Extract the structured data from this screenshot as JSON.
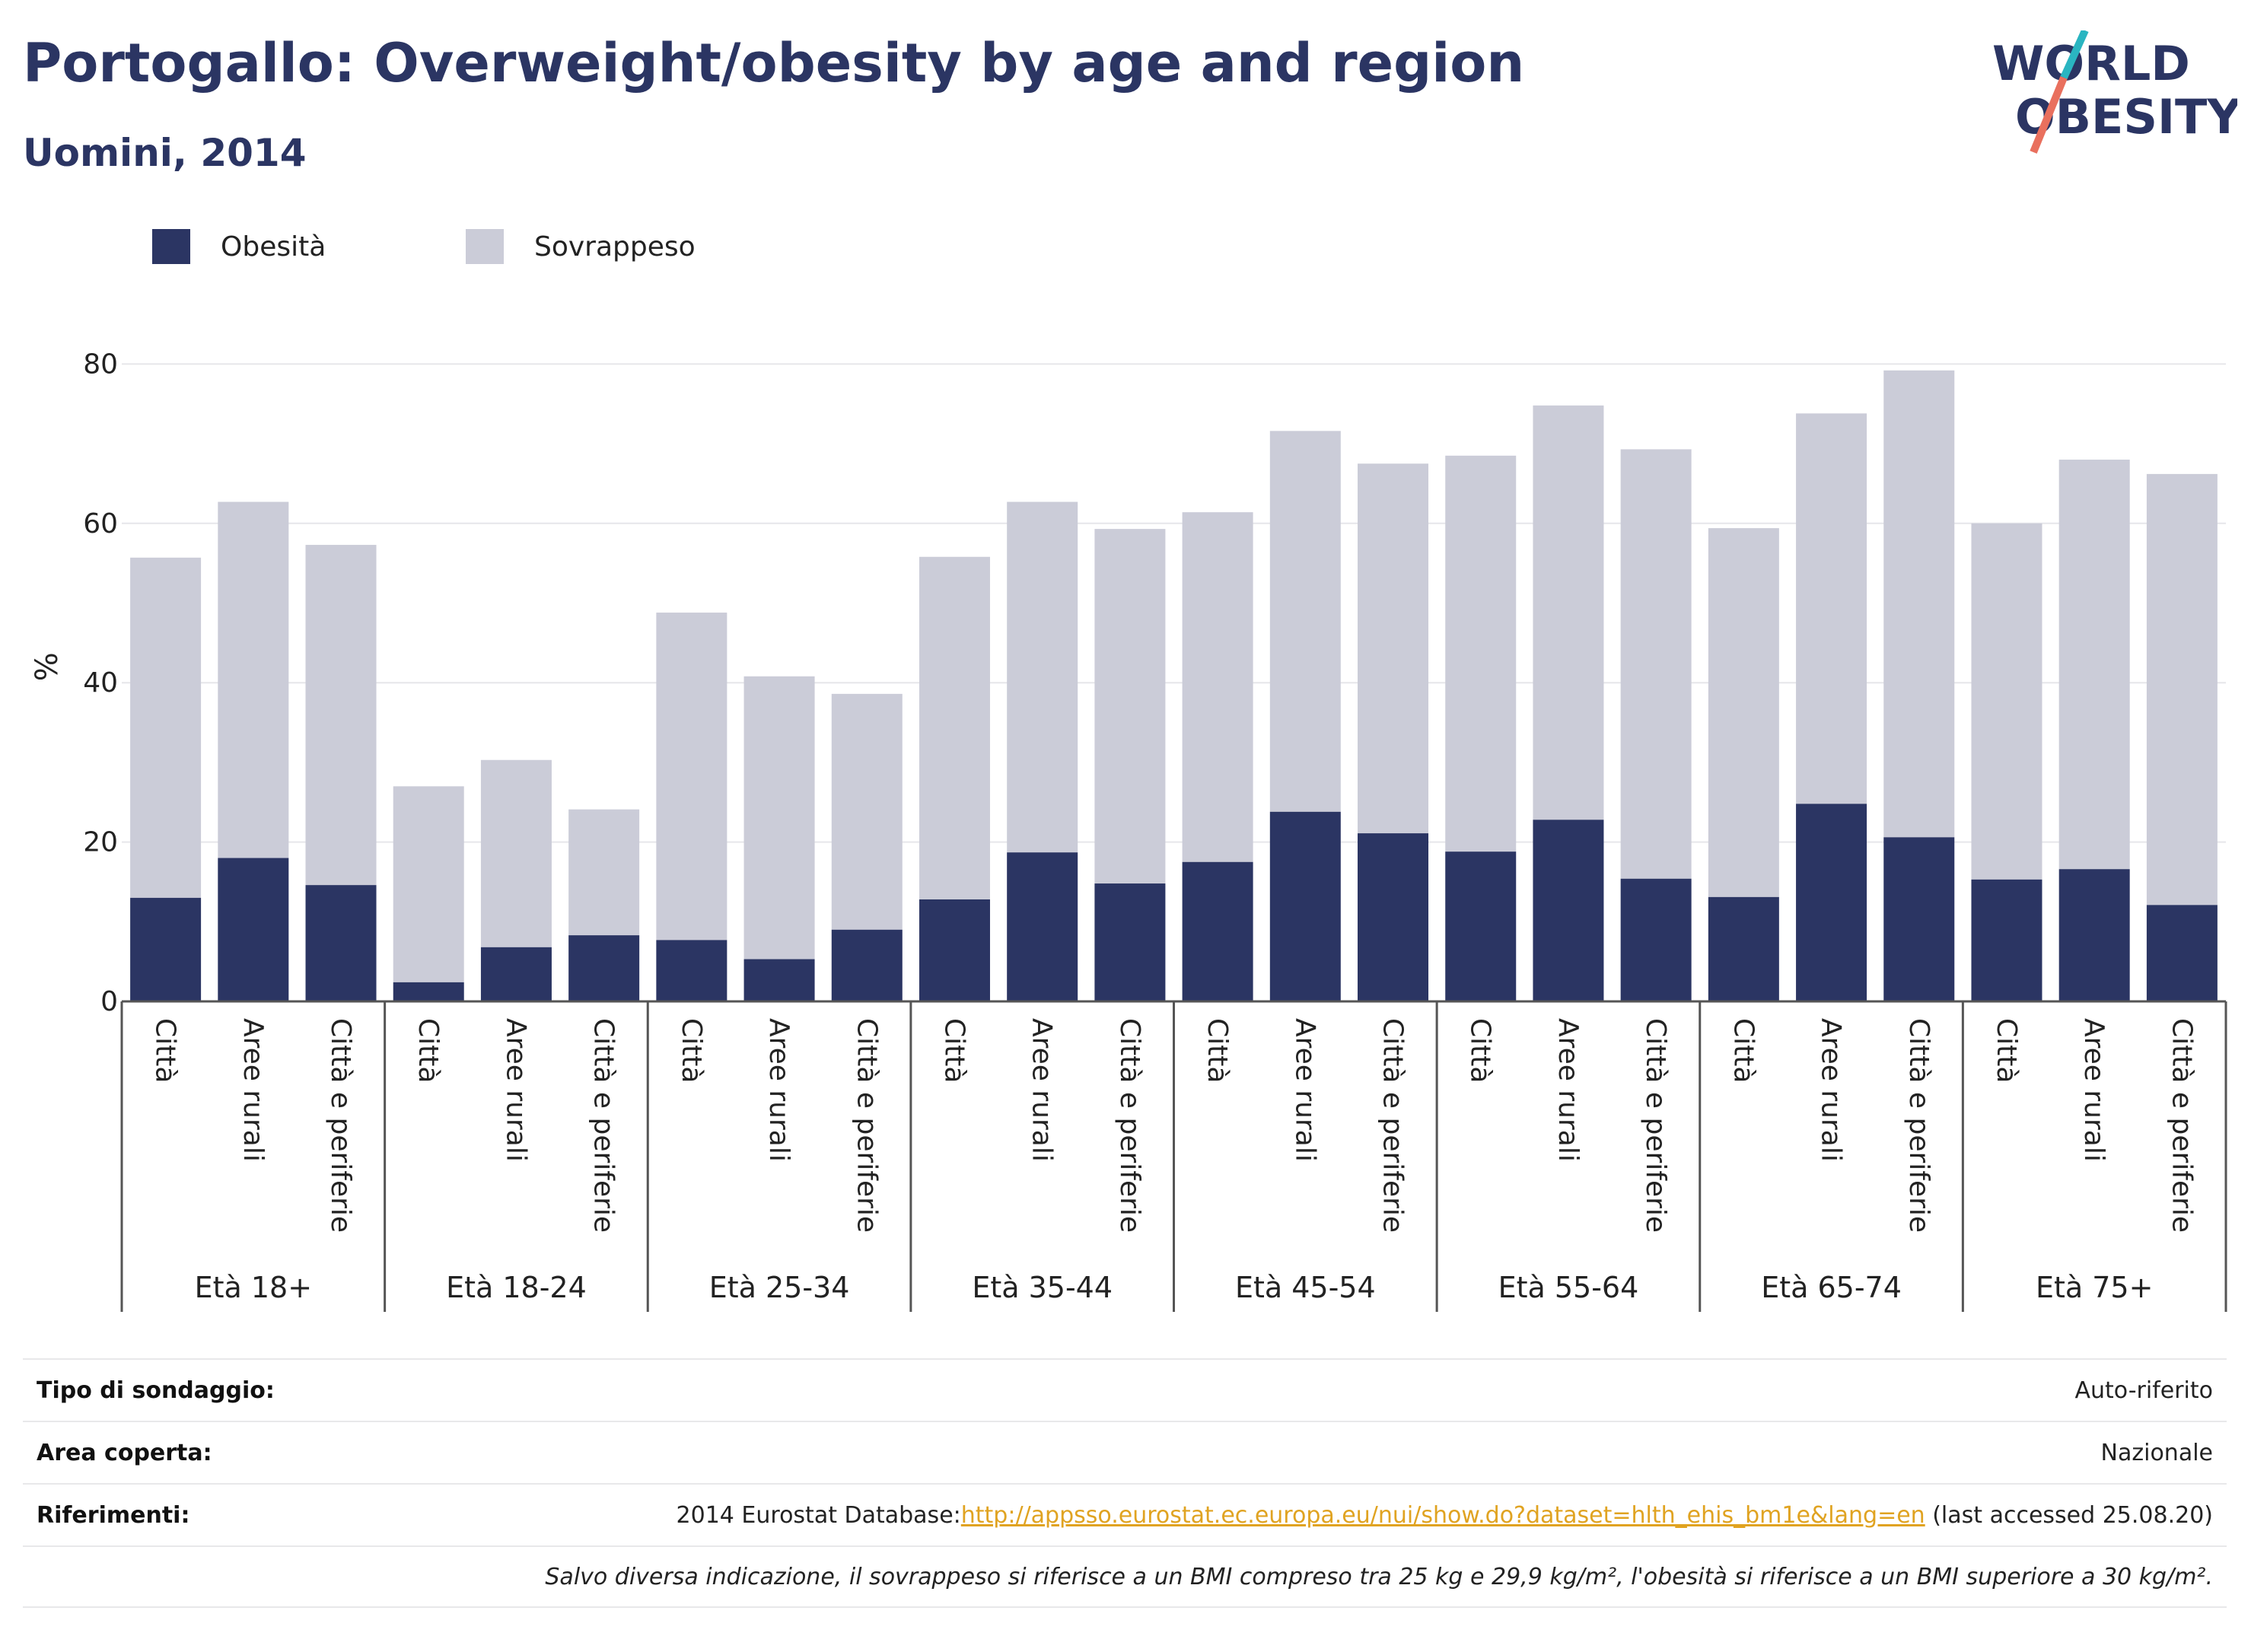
{
  "header": {
    "title": "Portogallo: Overweight/obesity by age and region",
    "subtitle": "Uomini, 2014",
    "logo_text_line1": "WORLD",
    "logo_text_line2": "OBESITY"
  },
  "colors": {
    "title": "#2b3563",
    "obesity": "#2b3563",
    "overweight": "#cbccd8",
    "grid": "#e6e6ea",
    "logo_teal": "#2ab5c1",
    "logo_coral": "#e9705e",
    "link": "#e0a321"
  },
  "chart_data": {
    "type": "bar",
    "stacked": true,
    "ylabel": "%",
    "ylim": [
      0,
      90
    ],
    "yticks": [
      0,
      20,
      40,
      60,
      80
    ],
    "grid": true,
    "legend_position": "top-left",
    "groups": [
      "Età 18+",
      "Età 18-24",
      "Età 25-34",
      "Età 35-44",
      "Età 45-54",
      "Età 55-64",
      "Età 65-74",
      "Età 75+"
    ],
    "subcategories": [
      "Città",
      "Aree rurali",
      "Città e periferie"
    ],
    "series": [
      {
        "name": "Obesità",
        "values": [
          13.0,
          18.0,
          14.6,
          2.4,
          6.8,
          8.3,
          7.7,
          5.3,
          9.0,
          12.8,
          18.7,
          14.8,
          17.5,
          23.8,
          21.1,
          18.8,
          22.8,
          15.4,
          13.1,
          24.8,
          20.6,
          15.3,
          16.6,
          12.1
        ]
      },
      {
        "name": "Sovrappeso",
        "values": [
          42.7,
          44.7,
          42.7,
          24.6,
          23.5,
          15.8,
          41.1,
          35.5,
          29.6,
          43.0,
          44.0,
          44.5,
          43.9,
          47.8,
          46.4,
          49.7,
          52.0,
          53.9,
          46.3,
          49.0,
          58.6,
          44.7,
          51.4,
          54.1
        ]
      }
    ]
  },
  "info": {
    "rows": [
      {
        "label": "Tipo di sondaggio:",
        "value": "Auto-riferito"
      },
      {
        "label": "Area coperta:",
        "value": "Nazionale"
      },
      {
        "label": "Riferimenti:",
        "prefix": "2014 Eurostat Database:",
        "link": "http://appsso.eurostat.ec.europa.eu/nui/show.do?dataset=hlth_ehis_bm1e&lang=en",
        "suffix": " (last accessed 25.08.20)"
      }
    ],
    "note": "Salvo diversa indicazione, il sovrappeso si riferisce a un BMI compreso tra 25 kg e 29,9 kg/m², l'obesità si riferisce a un BMI superiore a 30 kg/m²."
  }
}
